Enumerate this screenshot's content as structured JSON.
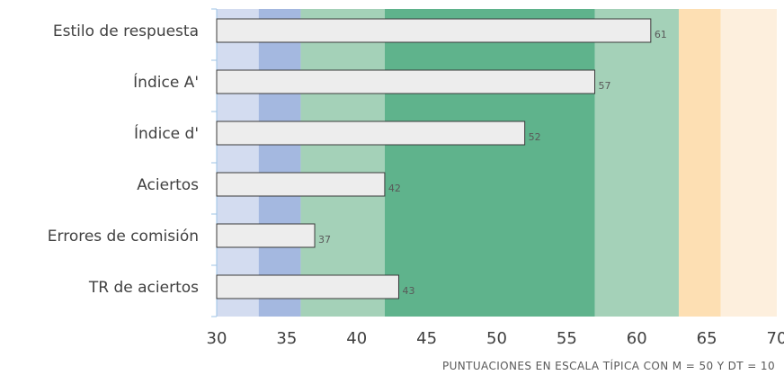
{
  "chart_data": {
    "type": "bar",
    "orientation": "horizontal",
    "categories": [
      "Estilo de respuesta",
      "Índice A'",
      "Índice d'",
      "Aciertos",
      "Errores de comisión",
      "TR de aciertos"
    ],
    "values": [
      61,
      57,
      52,
      42,
      37,
      43
    ],
    "value_labels": [
      "61",
      "57",
      "52",
      "42",
      "37",
      "43"
    ],
    "xlim": [
      30,
      70
    ],
    "xticks": [
      "30",
      "35",
      "40",
      "45",
      "50",
      "55",
      "60",
      "65",
      "70"
    ],
    "xlabel": "PUNTUACIONES EN ESCALA TÍPICA CON M = 50 Y DT = 10",
    "ylabel": "",
    "title": "",
    "grid": false,
    "background_bands": [
      {
        "from": 30,
        "to": 33,
        "color": "#d3dcf0"
      },
      {
        "from": 33,
        "to": 36,
        "color": "#a4b8e0"
      },
      {
        "from": 36,
        "to": 42,
        "color": "#a4d1b8"
      },
      {
        "from": 42,
        "to": 57,
        "color": "#5fb38c"
      },
      {
        "from": 57,
        "to": 63,
        "color": "#a4d1b8"
      },
      {
        "from": 63,
        "to": 66,
        "color": "#fddfb3"
      },
      {
        "from": 66,
        "to": 70,
        "color": "#fdefdd"
      }
    ]
  }
}
